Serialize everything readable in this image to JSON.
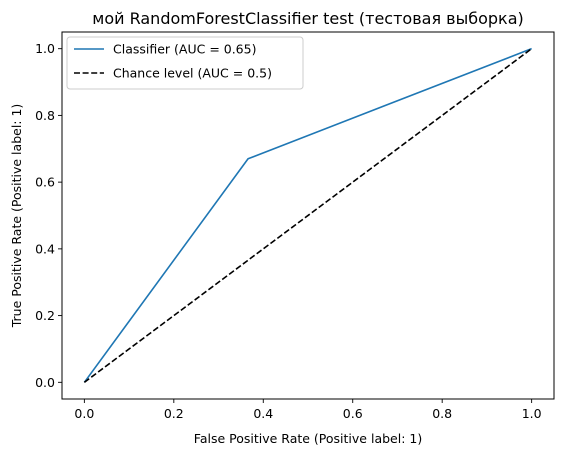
{
  "chart_data": {
    "type": "line",
    "title": "мой RandomForestClassifier test (тестовая выборка)",
    "xlabel": "False Positive Rate (Positive label: 1)",
    "ylabel": "True Positive Rate (Positive label: 1)",
    "xlim": [
      -0.05,
      1.05
    ],
    "ylim": [
      -0.05,
      1.05
    ],
    "xticks": [
      0.0,
      0.2,
      0.4,
      0.6,
      0.8,
      1.0
    ],
    "yticks": [
      0.0,
      0.2,
      0.4,
      0.6,
      0.8,
      1.0
    ],
    "xtick_labels": [
      "0.0",
      "0.2",
      "0.4",
      "0.6",
      "0.8",
      "1.0"
    ],
    "ytick_labels": [
      "0.0",
      "0.2",
      "0.4",
      "0.6",
      "0.8",
      "1.0"
    ],
    "grid": false,
    "legend_position": "upper-left",
    "series": [
      {
        "name": "Classifier (AUC = 0.65)",
        "color": "#1f77b4",
        "style": "solid",
        "x": [
          0.0,
          0.366,
          1.0
        ],
        "y": [
          0.0,
          0.67,
          1.0
        ]
      },
      {
        "name": "Chance level (AUC = 0.5)",
        "color": "#000000",
        "style": "dashed",
        "x": [
          0.0,
          1.0
        ],
        "y": [
          0.0,
          1.0
        ]
      }
    ]
  }
}
